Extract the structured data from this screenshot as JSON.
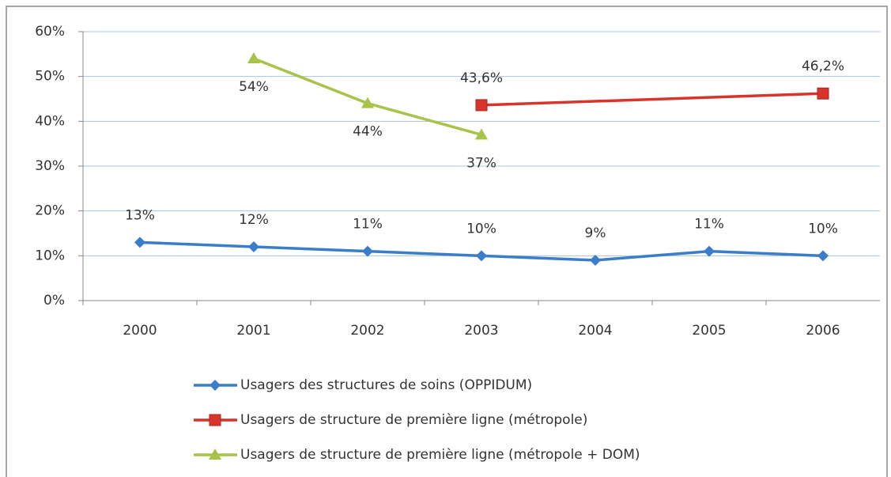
{
  "chart_data": {
    "type": "line",
    "categories": [
      "2000",
      "2001",
      "2002",
      "2003",
      "2004",
      "2005",
      "2006"
    ],
    "ylim": [
      0,
      60
    ],
    "yticks": [
      {
        "value": 0,
        "label": "0%"
      },
      {
        "value": 10,
        "label": "10%"
      },
      {
        "value": 20,
        "label": "20%"
      },
      {
        "value": 30,
        "label": "30%"
      },
      {
        "value": 40,
        "label": "40%"
      },
      {
        "value": 50,
        "label": "50%"
      },
      {
        "value": 60,
        "label": "60%"
      }
    ],
    "grid": true,
    "legend": "bottom",
    "series": [
      {
        "name": "Usagers des structures de soins (OPPIDUM)",
        "color": "#3a7dc9",
        "marker": "diamond",
        "label_position": "above",
        "values": [
          13,
          12,
          11,
          10,
          9,
          11,
          10
        ],
        "value_labels": [
          "13%",
          "12%",
          "11%",
          "10%",
          "9%",
          "11%",
          "10%"
        ]
      },
      {
        "name": "Usagers de structure de première ligne (métropole)",
        "color": "#d9342b",
        "marker": "square",
        "label_position": "above",
        "connect_gaps": true,
        "values": [
          null,
          null,
          null,
          43.6,
          null,
          null,
          46.2
        ],
        "value_labels": [
          null,
          null,
          null,
          "43,6%",
          null,
          null,
          "46,2%"
        ]
      },
      {
        "name": "Usagers de structure de première ligne (métropole + DOM)",
        "color": "#a9c24a",
        "marker": "triangle",
        "label_position": "below",
        "values": [
          null,
          54,
          44,
          37,
          null,
          null,
          null
        ],
        "value_labels": [
          null,
          "54%",
          "44%",
          "37%",
          null,
          null,
          null
        ]
      }
    ]
  }
}
